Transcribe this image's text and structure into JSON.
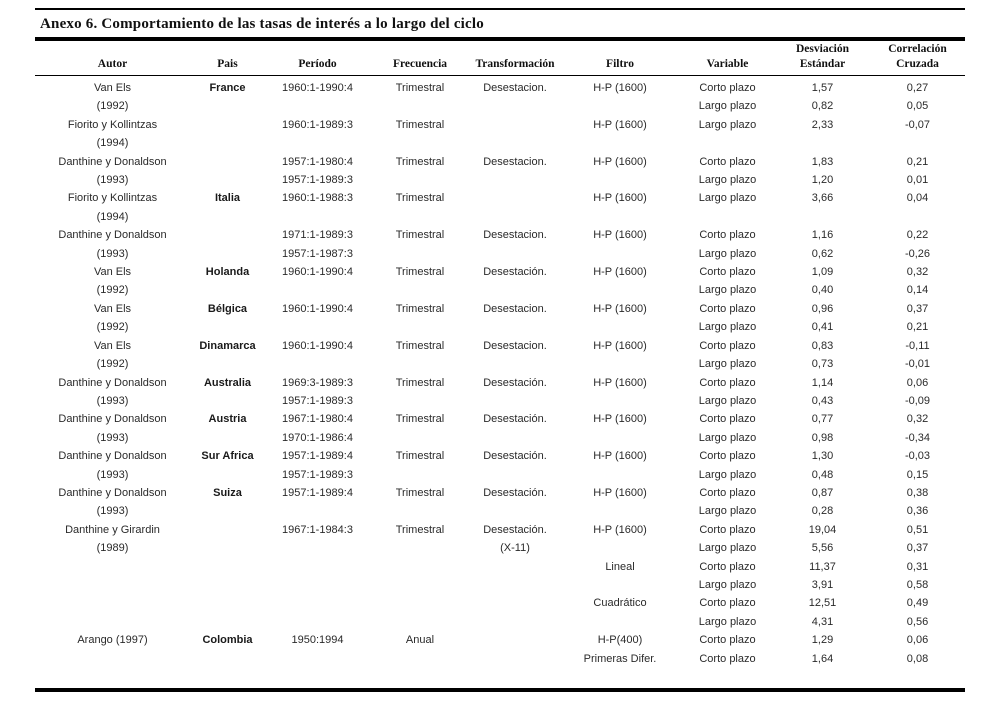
{
  "title": "Anexo 6. Comportamiento de las tasas de interés a lo largo del ciclo",
  "table": {
    "headers": [
      {
        "line1": "",
        "line2": "Autor"
      },
      {
        "line1": "",
        "line2": "Pais"
      },
      {
        "line1": "",
        "line2": "Período"
      },
      {
        "line1": "",
        "line2": "Frecuencia"
      },
      {
        "line1": "",
        "line2": "Transformación"
      },
      {
        "line1": "",
        "line2": "Filtro"
      },
      {
        "line1": "",
        "line2": "Variable"
      },
      {
        "line1": "Desviación",
        "line2": "Estándar"
      },
      {
        "line1": "Correlación",
        "line2": "Cruzada"
      }
    ],
    "rows": [
      [
        "Van Els",
        "France",
        "1960:1-1990:4",
        "Trimestral",
        "Desestacion.",
        "H-P (1600)",
        "Corto plazo",
        "1,57",
        "0,27"
      ],
      [
        "(1992)",
        "",
        "",
        "",
        "",
        "",
        "Largo plazo",
        "0,82",
        "0,05"
      ],
      [
        "Fiorito y Kollintzas",
        "",
        "1960:1-1989:3",
        "Trimestral",
        "",
        "H-P (1600)",
        "Largo plazo",
        "2,33",
        "-0,07"
      ],
      [
        "(1994)",
        "",
        "",
        "",
        "",
        "",
        "",
        "",
        ""
      ],
      [
        "Danthine y Donaldson",
        "",
        "1957:1-1980:4",
        "Trimestral",
        "Desestacion.",
        "H-P (1600)",
        "Corto plazo",
        "1,83",
        "0,21"
      ],
      [
        "(1993)",
        "",
        "1957:1-1989:3",
        "",
        "",
        "",
        "Largo plazo",
        "1,20",
        "0,01"
      ],
      [
        "Fiorito y Kollintzas",
        "Italia",
        "1960:1-1988:3",
        "Trimestral",
        "",
        "H-P (1600)",
        "Largo plazo",
        "3,66",
        "0,04"
      ],
      [
        "(1994)",
        "",
        "",
        "",
        "",
        "",
        "",
        "",
        ""
      ],
      [
        "Danthine y Donaldson",
        "",
        "1971:1-1989:3",
        "Trimestral",
        "Desestacion.",
        "H-P (1600)",
        "Corto plazo",
        "1,16",
        "0,22"
      ],
      [
        "(1993)",
        "",
        "1957:1-1987:3",
        "",
        "",
        "",
        "Largo plazo",
        "0,62",
        "-0,26"
      ],
      [
        "Van Els",
        "Holanda",
        "1960:1-1990:4",
        "Trimestral",
        "Desestación.",
        "H-P (1600)",
        "Corto plazo",
        "1,09",
        "0,32"
      ],
      [
        "(1992)",
        "",
        "",
        "",
        "",
        "",
        "Largo plazo",
        "0,40",
        "0,14"
      ],
      [
        "Van Els",
        "Bélgica",
        "1960:1-1990:4",
        "Trimestral",
        "Desestacion.",
        "H-P (1600)",
        "Corto plazo",
        "0,96",
        "0,37"
      ],
      [
        "(1992)",
        "",
        "",
        "",
        "",
        "",
        "Largo plazo",
        "0,41",
        "0,21"
      ],
      [
        "Van Els",
        "Dinamarca",
        "1960:1-1990:4",
        "Trimestral",
        "Desestacion.",
        "H-P (1600)",
        "Corto plazo",
        "0,83",
        "-0,11"
      ],
      [
        "(1992)",
        "",
        "",
        "",
        "",
        "",
        "Largo plazo",
        "0,73",
        "-0,01"
      ],
      [
        "Danthine y Donaldson",
        "Australia",
        "1969:3-1989:3",
        "Trimestral",
        "Desestación.",
        "H-P (1600)",
        "Corto plazo",
        "1,14",
        "0,06"
      ],
      [
        "(1993)",
        "",
        "1957:1-1989:3",
        "",
        "",
        "",
        "Largo plazo",
        "0,43",
        "-0,09"
      ],
      [
        "Danthine y Donaldson",
        "Austria",
        "1967:1-1980:4",
        "Trimestral",
        "Desestación.",
        "H-P (1600)",
        "Corto plazo",
        "0,77",
        "0,32"
      ],
      [
        "(1993)",
        "",
        "1970:1-1986:4",
        "",
        "",
        "",
        "Largo plazo",
        "0,98",
        "-0,34"
      ],
      [
        "Danthine y Donaldson",
        "Sur Africa",
        "1957:1-1989:4",
        "Trimestral",
        "Desestación.",
        "H-P (1600)",
        "Corto plazo",
        "1,30",
        "-0,03"
      ],
      [
        "(1993)",
        "",
        "1957:1-1989:3",
        "",
        "",
        "",
        "Largo plazo",
        "0,48",
        "0,15"
      ],
      [
        "Danthine y Donaldson",
        "Suiza",
        "1957:1-1989:4",
        "Trimestral",
        "Desestación.",
        "H-P (1600)",
        "Corto plazo",
        "0,87",
        "0,38"
      ],
      [
        "(1993)",
        "",
        "",
        "",
        "",
        "",
        "Largo plazo",
        "0,28",
        "0,36"
      ],
      [
        "Danthine y Girardin",
        "",
        "1967:1-1984:3",
        "Trimestral",
        "Desestación.",
        "H-P (1600)",
        "Corto plazo",
        "19,04",
        "0,51"
      ],
      [
        "(1989)",
        "",
        "",
        "",
        "(X-11)",
        "",
        "Largo plazo",
        "5,56",
        "0,37"
      ],
      [
        "",
        "",
        "",
        "",
        "",
        "Lineal",
        "Corto plazo",
        "11,37",
        "0,31"
      ],
      [
        "",
        "",
        "",
        "",
        "",
        "",
        "Largo plazo",
        "3,91",
        "0,58"
      ],
      [
        "",
        "",
        "",
        "",
        "",
        "Cuadrático",
        "Corto plazo",
        "12,51",
        "0,49"
      ],
      [
        "",
        "",
        "",
        "",
        "",
        "",
        "Largo plazo",
        "4,31",
        "0,56"
      ],
      [
        "Arango (1997)",
        "Colombia",
        "1950:1994",
        "Anual",
        "",
        "H-P(400)",
        "Corto plazo",
        "1,29",
        "0,06"
      ],
      [
        "",
        "",
        "",
        "",
        "",
        "Primeras Difer.",
        "Corto plazo",
        "1,64",
        "0,08"
      ]
    ]
  }
}
